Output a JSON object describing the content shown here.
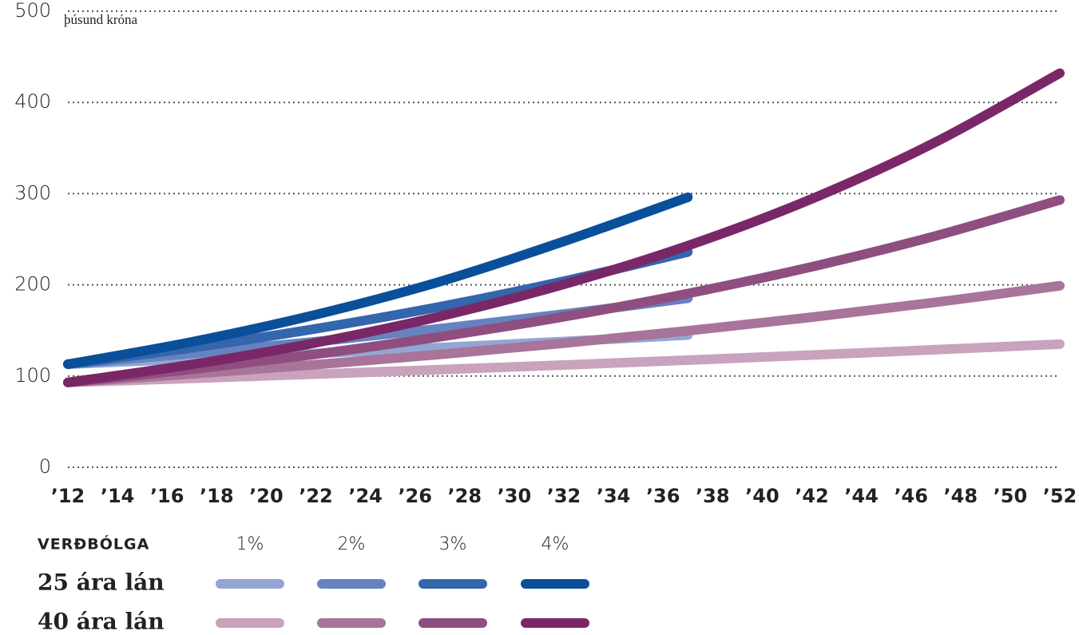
{
  "chart_data": {
    "type": "line",
    "y_label": "þúsund króna",
    "x": [
      2012,
      2017,
      2022,
      2027,
      2032,
      2037,
      2042,
      2047,
      2052
    ],
    "xlim": [
      2012,
      2052
    ],
    "xticks": [
      {
        "value": 2012,
        "label": "’12"
      },
      {
        "value": 2014,
        "label": "’14"
      },
      {
        "value": 2016,
        "label": "’16"
      },
      {
        "value": 2018,
        "label": "’18"
      },
      {
        "value": 2020,
        "label": "’20"
      },
      {
        "value": 2022,
        "label": "’22"
      },
      {
        "value": 2024,
        "label": "’24"
      },
      {
        "value": 2026,
        "label": "’26"
      },
      {
        "value": 2028,
        "label": "’28"
      },
      {
        "value": 2030,
        "label": "’30"
      },
      {
        "value": 2032,
        "label": "’32"
      },
      {
        "value": 2034,
        "label": "’34"
      },
      {
        "value": 2036,
        "label": "’36"
      },
      {
        "value": 2038,
        "label": "’38"
      },
      {
        "value": 2040,
        "label": "’40"
      },
      {
        "value": 2042,
        "label": "’42"
      },
      {
        "value": 2044,
        "label": "’44"
      },
      {
        "value": 2046,
        "label": "’46"
      },
      {
        "value": 2048,
        "label": "’48"
      },
      {
        "value": 2050,
        "label": "’50"
      },
      {
        "value": 2052,
        "label": "’52"
      }
    ],
    "ylim": [
      0,
      500
    ],
    "yticks": [
      0,
      100,
      200,
      300,
      400,
      500
    ],
    "grid": true,
    "legend": {
      "title": "VERÐBÓLGA",
      "columns": [
        "1%",
        "2%",
        "3%",
        "4%"
      ],
      "rows": [
        "25 ára lán",
        "40 ára lán"
      ]
    },
    "series": [
      {
        "color": "#93a6d3",
        "values": [
          113,
          118.8,
          124.8,
          131.2,
          137.9,
          144.9,
          null,
          null,
          null
        ]
      },
      {
        "color": "#6682bf",
        "values": [
          113,
          124.8,
          137.7,
          152.0,
          167.9,
          185.3,
          null,
          null,
          null
        ]
      },
      {
        "color": "#3366ad",
        "values": [
          113,
          131.0,
          151.9,
          176.0,
          204.0,
          236.0,
          null,
          null,
          null
        ]
      },
      {
        "color": "#0a4f9a",
        "values": [
          113,
          137.5,
          167.3,
          203.5,
          247.6,
          296,
          null,
          null,
          null
        ]
      },
      {
        "color": "#c9a2bd",
        "values": [
          93,
          97.4,
          102.1,
          107.0,
          112.1,
          117.4,
          123.0,
          128.9,
          135
        ]
      },
      {
        "color": "#a97499",
        "values": [
          93,
          102.3,
          112.5,
          123.7,
          136.0,
          149.6,
          164.5,
          180.9,
          199
        ]
      },
      {
        "color": "#8f4e80",
        "values": [
          93,
          107.3,
          123.9,
          143.0,
          165.0,
          190.5,
          219.8,
          253.7,
          293
        ]
      },
      {
        "color": "#7a2767",
        "values": [
          93,
          112.7,
          136.5,
          165.4,
          200.5,
          242.9,
          294.3,
          356.6,
          432
        ]
      }
    ]
  }
}
